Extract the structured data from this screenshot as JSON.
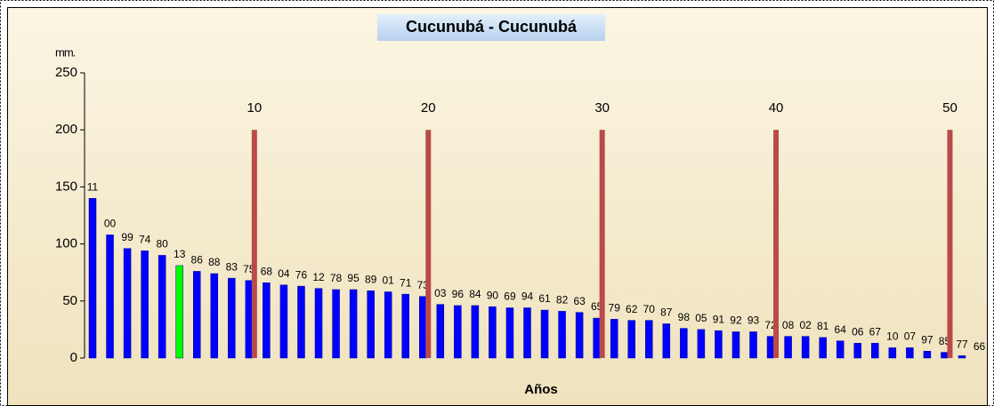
{
  "chart_data": {
    "type": "bar",
    "title": "Cucunubá - Cucunubá",
    "ylabel": "mm.",
    "xlabel": "Años",
    "categories": [
      "11",
      "00",
      "99",
      "74",
      "80",
      "13",
      "86",
      "88",
      "83",
      "75",
      "68",
      "04",
      "76",
      "12",
      "78",
      "95",
      "89",
      "01",
      "71",
      "73",
      "03",
      "96",
      "84",
      "90",
      "69",
      "94",
      "61",
      "82",
      "63",
      "65",
      "79",
      "62",
      "70",
      "87",
      "98",
      "05",
      "91",
      "92",
      "93",
      "72",
      "08",
      "02",
      "81",
      "64",
      "06",
      "67",
      "10",
      "07",
      "97",
      "85",
      "77",
      "66"
    ],
    "values": [
      140,
      108,
      96,
      94,
      90,
      81,
      76,
      74,
      70,
      68,
      66,
      64,
      63,
      61,
      60,
      60,
      59,
      58,
      56,
      54,
      47,
      46,
      46,
      45,
      44,
      44,
      42,
      41,
      40,
      35,
      34,
      33,
      33,
      30,
      26,
      25,
      24,
      23,
      23,
      19,
      19,
      19,
      18,
      15,
      13,
      13,
      9,
      9,
      6,
      5,
      2,
      0
    ],
    "colors": [
      "#0000ff",
      "#0000ff",
      "#0000ff",
      "#0000ff",
      "#0000ff",
      "#00ff00",
      "#0000ff",
      "#0000ff",
      "#0000ff",
      "#0000ff",
      "#0000ff",
      "#0000ff",
      "#0000ff",
      "#0000ff",
      "#0000ff",
      "#0000ff",
      "#0000ff",
      "#0000ff",
      "#0000ff",
      "#0000ff",
      "#0000ff",
      "#0000ff",
      "#0000ff",
      "#0000ff",
      "#0000ff",
      "#0000ff",
      "#0000ff",
      "#0000ff",
      "#0000ff",
      "#0000ff",
      "#0000ff",
      "#0000ff",
      "#0000ff",
      "#0000ff",
      "#0000ff",
      "#0000ff",
      "#0000ff",
      "#0000ff",
      "#0000ff",
      "#0000ff",
      "#0000ff",
      "#0000ff",
      "#0000ff",
      "#0000ff",
      "#0000ff",
      "#0000ff",
      "#0000ff",
      "#0000ff",
      "#0000ff",
      "#0000ff",
      "#0000ff",
      "#0000ff"
    ],
    "markers": {
      "positions": [
        10,
        20,
        30,
        40,
        50
      ],
      "values": [
        200,
        200,
        200,
        200,
        200
      ],
      "color": "#b94a48"
    },
    "ylim": [
      0,
      250
    ],
    "yticks": [
      0,
      50,
      100,
      150,
      200,
      250
    ]
  }
}
